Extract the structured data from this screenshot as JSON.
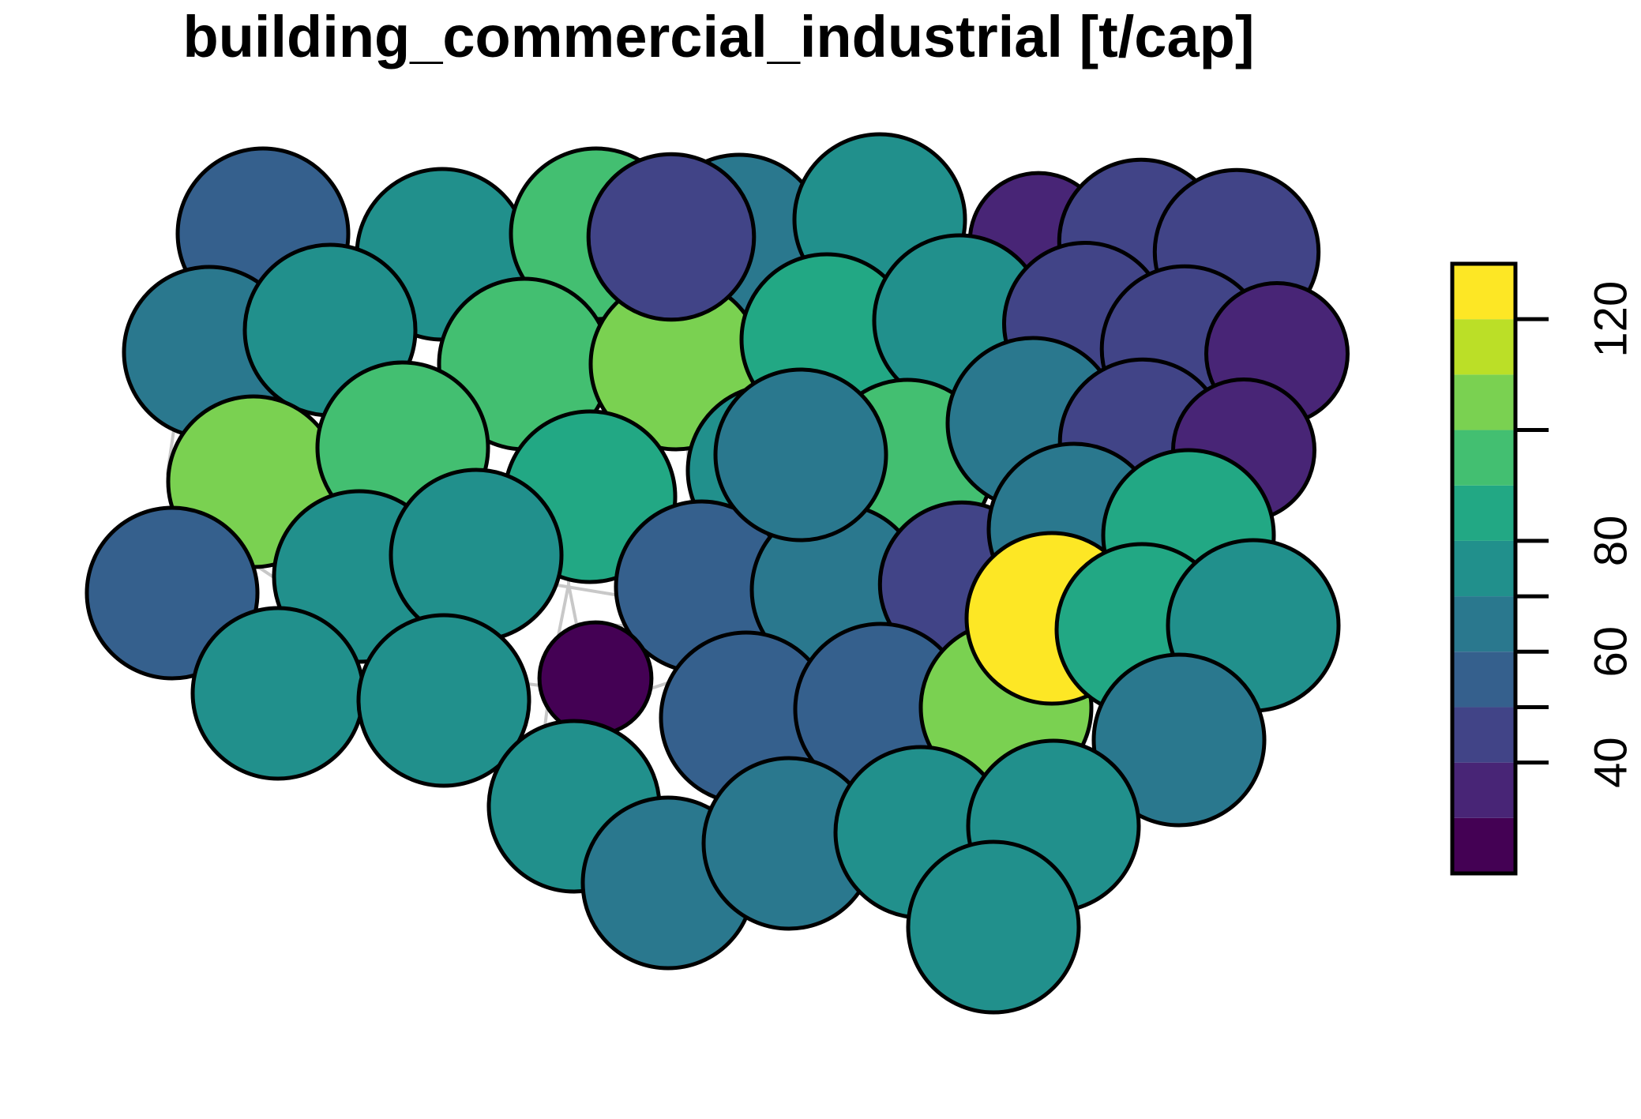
{
  "chart_data": {
    "type": "proportional_circle_map",
    "title": "building_commercial_industrial [t/cap]",
    "variable": "building_commercial_industrial",
    "unit": "t/cap",
    "legend": {
      "type": "binned color scale",
      "placement": "right",
      "range": [
        20,
        130
      ],
      "bin_width": 10,
      "tick_values": [
        40,
        60,
        80,
        120
      ],
      "tick_labels": [
        "40",
        "60",
        "80",
        "120"
      ],
      "colors": [
        "#440154",
        "#482576",
        "#414487",
        "#35608D",
        "#2A788E",
        "#21908C",
        "#22A884",
        "#43BF71",
        "#7AD151",
        "#BBDF27",
        "#FDE725"
      ]
    },
    "circles_note": "one circle per US state; circle area and fill encode the value",
    "values": [
      55,
      72,
      94,
      66,
      70,
      33,
      47,
      47,
      68,
      70,
      94,
      103,
      88,
      76,
      46,
      48,
      35,
      103,
      94,
      86,
      72,
      94,
      68,
      48,
      35,
      59,
      70,
      74,
      54,
      62,
      47,
      68,
      88,
      75,
      70,
      22,
      57,
      56,
      103,
      128,
      86,
      76,
      64,
      78,
      66,
      61,
      70,
      76,
      76,
      68,
      48
    ]
  }
}
